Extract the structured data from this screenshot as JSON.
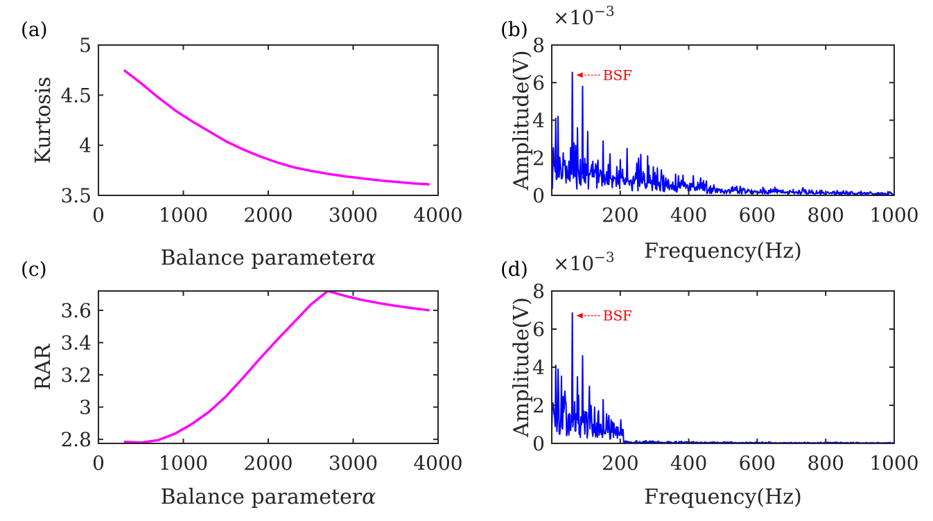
{
  "colors": {
    "magenta": "#FF00FF",
    "blue": "#0000FF",
    "annotation": "#FF0000",
    "axis": "#262626"
  },
  "chart_data": [
    {
      "id": "a",
      "panel_label": "(a)",
      "type": "line",
      "xlabel": "Balance parameter",
      "xlabel_symbol": "α",
      "ylabel": "Kurtosis",
      "xlim": [
        0,
        4000
      ],
      "ylim": [
        3.5,
        5
      ],
      "xticks": [
        0,
        1000,
        2000,
        3000,
        4000
      ],
      "xtick_labels": [
        "0",
        "1000",
        "2000",
        "3000",
        "4000"
      ],
      "yticks": [
        3.5,
        4,
        4.5,
        5
      ],
      "ytick_labels": [
        "3.5",
        "4",
        "4.5",
        "5"
      ],
      "grid": false,
      "series": [
        {
          "color": "#FF00FF",
          "x": [
            300,
            500,
            700,
            900,
            1100,
            1300,
            1500,
            1700,
            1900,
            2100,
            2300,
            2500,
            2700,
            2900,
            3100,
            3300,
            3500,
            3700,
            3900
          ],
          "y": [
            4.75,
            4.62,
            4.48,
            4.35,
            4.24,
            4.14,
            4.04,
            3.96,
            3.89,
            3.83,
            3.78,
            3.745,
            3.715,
            3.69,
            3.67,
            3.65,
            3.635,
            3.62,
            3.61
          ]
        }
      ]
    },
    {
      "id": "b",
      "panel_label": "(b)",
      "type": "line",
      "xlabel": "Frequency(Hz)",
      "ylabel": "Amplitude(V)",
      "scale_exponent_base": "×10",
      "scale_exponent": "−3",
      "xlim": [
        0,
        1000
      ],
      "ylim": [
        0,
        8
      ],
      "xticks": [
        200,
        400,
        600,
        800,
        1000
      ],
      "xtick_labels": [
        "200",
        "400",
        "600",
        "800",
        "1000"
      ],
      "yticks": [
        0,
        2,
        4,
        6,
        8
      ],
      "ytick_labels": [
        "0",
        "2",
        "4",
        "6",
        "8"
      ],
      "grid": false,
      "spectrum": {
        "color": "#0000FF",
        "cutoff_hz": 420,
        "noise_level": 1.2,
        "floor": 0.08,
        "tail_level": 0.4,
        "seed": 7,
        "peaks": [
          [
            12,
            4.1
          ],
          [
            18,
            4.2
          ],
          [
            60,
            6.55
          ],
          [
            90,
            5.8
          ],
          [
            75,
            3.6
          ],
          [
            105,
            3.4
          ],
          [
            150,
            2.9
          ],
          [
            220,
            2.5
          ],
          [
            280,
            2.1
          ]
        ]
      },
      "annotation": {
        "text": "BSF",
        "x": 60,
        "y": 6.55,
        "color": "#FF0000"
      }
    },
    {
      "id": "c",
      "panel_label": "(c)",
      "type": "line",
      "xlabel": "Balance parameter",
      "xlabel_symbol": "α",
      "ylabel": "RAR",
      "xlim": [
        0,
        4000
      ],
      "ylim": [
        2.775,
        3.72
      ],
      "xticks": [
        0,
        1000,
        2000,
        3000,
        4000
      ],
      "xtick_labels": [
        "0",
        "1000",
        "2000",
        "3000",
        "4000"
      ],
      "yticks": [
        2.8,
        3,
        3.2,
        3.4,
        3.6
      ],
      "ytick_labels": [
        "2.8",
        "3",
        "3.2",
        "3.4",
        "3.6"
      ],
      "grid": false,
      "series": [
        {
          "color": "#FF00FF",
          "x": [
            300,
            500,
            700,
            900,
            1100,
            1300,
            1500,
            1700,
            1900,
            2100,
            2300,
            2500,
            2700,
            2900,
            3100,
            3300,
            3500,
            3700,
            3900
          ],
          "y": [
            2.785,
            2.78,
            2.795,
            2.835,
            2.895,
            2.97,
            3.065,
            3.18,
            3.3,
            3.415,
            3.525,
            3.635,
            3.72,
            3.69,
            3.665,
            3.645,
            3.628,
            3.613,
            3.6
          ]
        }
      ]
    },
    {
      "id": "d",
      "panel_label": "(d)",
      "type": "line",
      "xlabel": "Frequency(Hz)",
      "ylabel": "Amplitude(V)",
      "scale_exponent_base": "×10",
      "scale_exponent": "−3",
      "xlim": [
        0,
        1000
      ],
      "ylim": [
        0,
        8
      ],
      "xticks": [
        200,
        400,
        600,
        800,
        1000
      ],
      "xtick_labels": [
        "200",
        "400",
        "600",
        "800",
        "1000"
      ],
      "yticks": [
        0,
        2,
        4,
        6,
        8
      ],
      "ytick_labels": [
        "0",
        "2",
        "4",
        "6",
        "8"
      ],
      "grid": false,
      "spectrum": {
        "color": "#0000FF",
        "cutoff_hz": 210,
        "noise_level": 1.3,
        "floor": 0.03,
        "tail_level": 0.06,
        "seed": 13,
        "peaks": [
          [
            12,
            4.1
          ],
          [
            18,
            3.9
          ],
          [
            60,
            6.85
          ],
          [
            90,
            4.6
          ],
          [
            75,
            3.5
          ],
          [
            110,
            3.0
          ],
          [
            150,
            2.3
          ]
        ]
      },
      "annotation": {
        "text": "BSF",
        "x": 60,
        "y": 6.85,
        "color": "#FF0000"
      }
    }
  ]
}
